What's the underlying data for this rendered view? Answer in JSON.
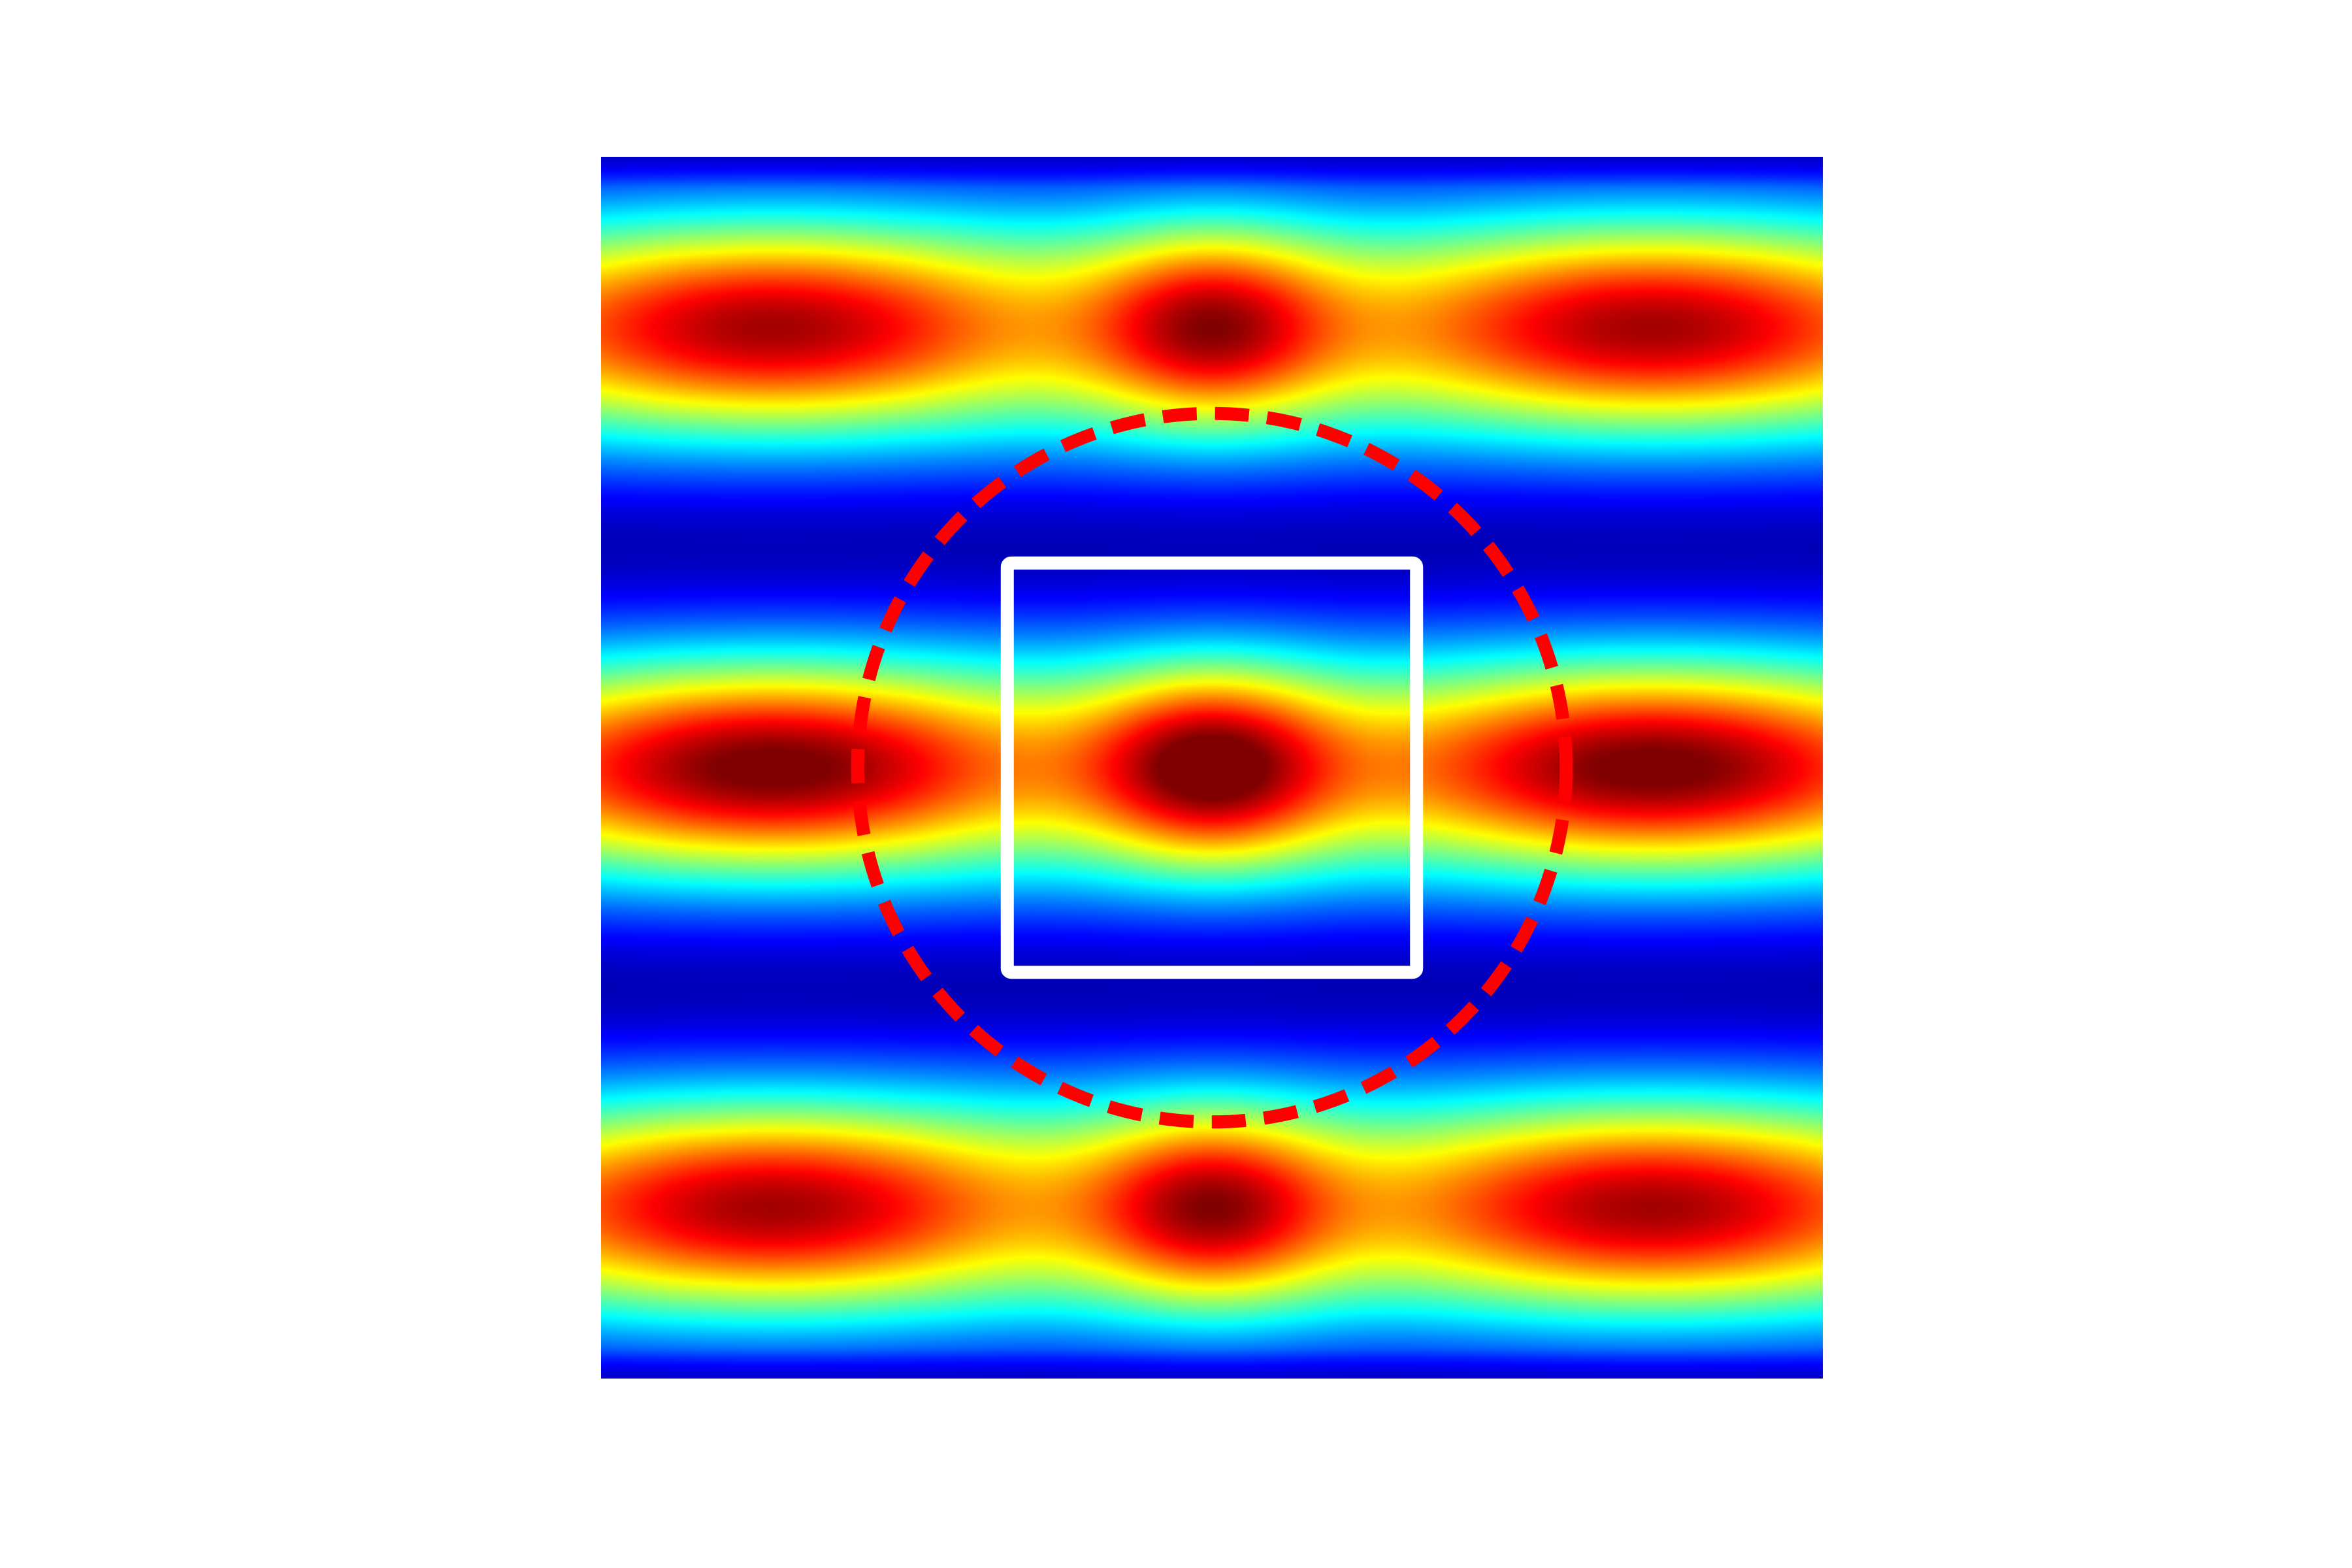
{
  "chart_data": {
    "type": "heatmap",
    "colormap": "jet",
    "axes_visible": false,
    "grid": false,
    "xlim": [
      -1,
      1
    ],
    "ylim": [
      -1,
      1
    ],
    "intensity_peaks": [
      {
        "x": -0.72,
        "y": 0.72,
        "value": 0.84
      },
      {
        "x": 0.0,
        "y": 0.72,
        "value": 0.85
      },
      {
        "x": 0.72,
        "y": 0.72,
        "value": 0.84
      },
      {
        "x": -0.72,
        "y": 0.0,
        "value": 0.96
      },
      {
        "x": 0.0,
        "y": 0.0,
        "value": 1.0
      },
      {
        "x": 0.72,
        "y": 0.0,
        "value": 0.96
      },
      {
        "x": -0.72,
        "y": -0.72,
        "value": 0.84
      },
      {
        "x": 0.0,
        "y": -0.72,
        "value": 0.85
      },
      {
        "x": 0.72,
        "y": -0.72,
        "value": 0.84
      }
    ],
    "overlays": [
      {
        "shape": "circle",
        "style": "dashed",
        "color": "#ff0000",
        "center": [
          0,
          0
        ],
        "radius": 0.58
      },
      {
        "shape": "square",
        "style": "solid",
        "color": "#ffffff",
        "center": [
          0,
          0
        ],
        "half_width": 0.335
      }
    ]
  }
}
